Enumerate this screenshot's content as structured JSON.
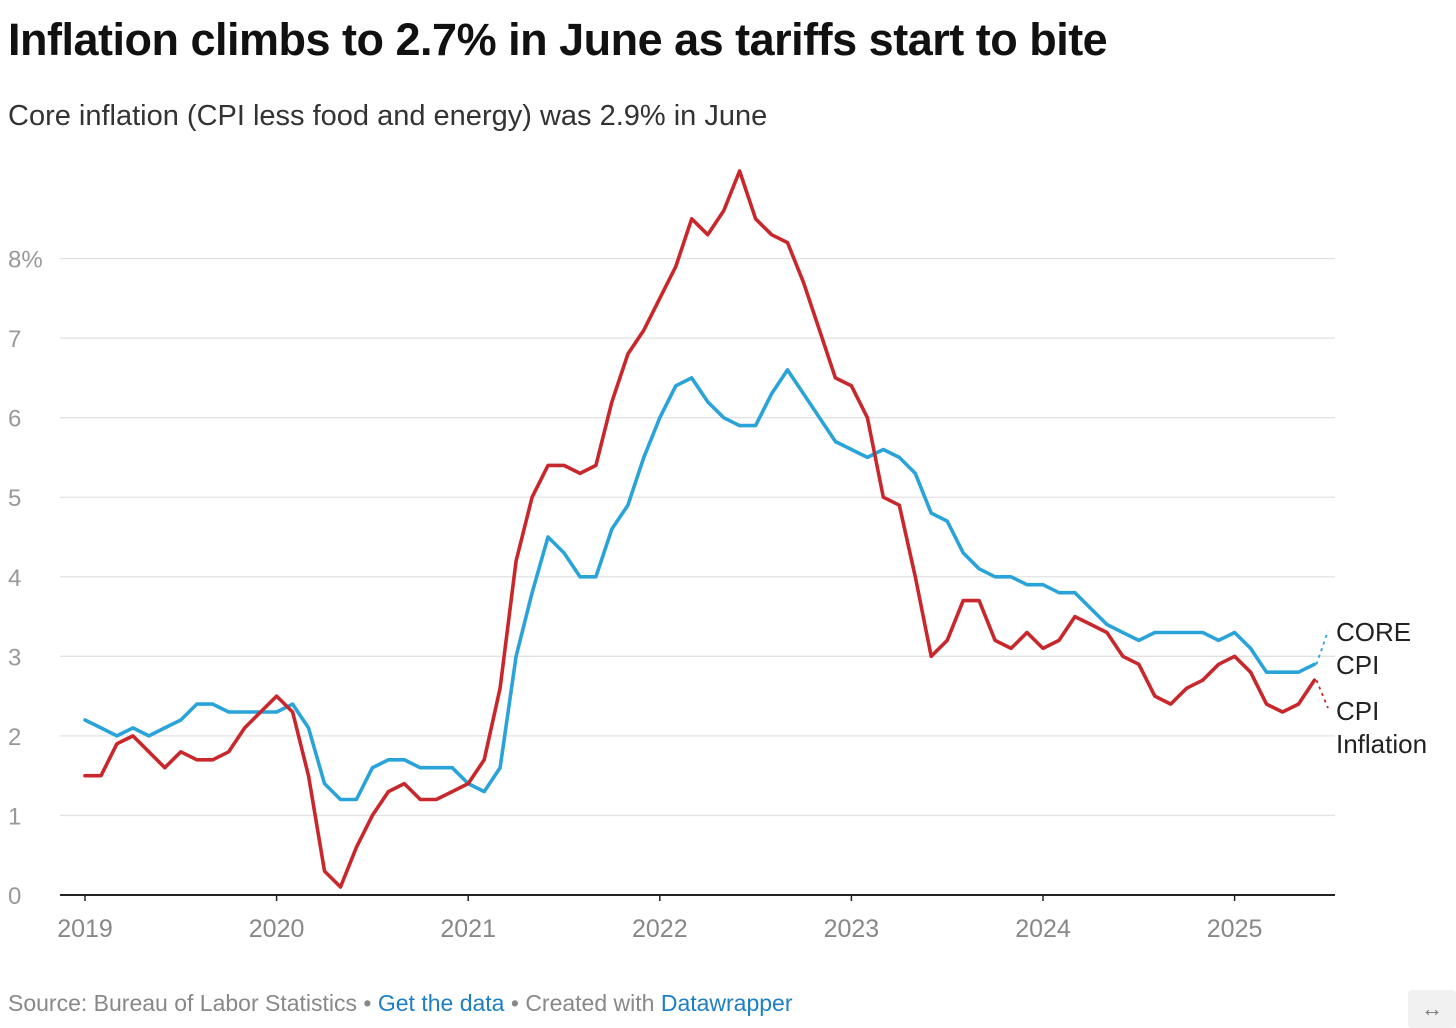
{
  "header": {
    "title": "Inflation climbs to 2.7% in June as tariffs start to bite",
    "subtitle": "Core inflation (CPI less food and energy) was 2.9% in June"
  },
  "footer": {
    "source_text": "Source: Bureau of Labor Statistics",
    "separator": " • ",
    "get_data_label": "Get the data",
    "created_with_text": "Created with ",
    "datawrapper_label": "Datawrapper"
  },
  "icons": {
    "expand": "expand-horizontal-icon"
  },
  "colors": {
    "cpi": "#c8282b",
    "core": "#2aa4d8",
    "link": "#1d7fc4"
  },
  "chart_data": {
    "type": "line",
    "title": "Inflation climbs to 2.7% in June as tariffs start to bite",
    "subtitle": "Core inflation (CPI less food and energy) was 2.9% in June",
    "x_start": "2019-01",
    "x_end": "2025-06",
    "x_ticks": [
      "2019",
      "2020",
      "2021",
      "2022",
      "2023",
      "2024",
      "2025"
    ],
    "y_ticks": [
      0,
      1,
      2,
      3,
      4,
      5,
      6,
      7,
      8
    ],
    "y_tick_labels": [
      "0",
      "1",
      "2",
      "3",
      "4",
      "5",
      "6",
      "7",
      "8%"
    ],
    "ylim": [
      0,
      9
    ],
    "grid": true,
    "series": [
      {
        "name": "CORE CPI",
        "label_lines": [
          "CORE",
          "CPI"
        ],
        "color": "#2aa4d8",
        "values": [
          2.2,
          2.1,
          2.0,
          2.1,
          2.0,
          2.1,
          2.2,
          2.4,
          2.4,
          2.3,
          2.3,
          2.3,
          2.3,
          2.4,
          2.1,
          1.4,
          1.2,
          1.2,
          1.6,
          1.7,
          1.7,
          1.6,
          1.6,
          1.6,
          1.4,
          1.3,
          1.6,
          3.0,
          3.8,
          4.5,
          4.3,
          4.0,
          4.0,
          4.6,
          4.9,
          5.5,
          6.0,
          6.4,
          6.5,
          6.2,
          6.0,
          5.9,
          5.9,
          6.3,
          6.6,
          6.3,
          6.0,
          5.7,
          5.6,
          5.5,
          5.6,
          5.5,
          5.3,
          4.8,
          4.7,
          4.3,
          4.1,
          4.0,
          4.0,
          3.9,
          3.9,
          3.8,
          3.8,
          3.6,
          3.4,
          3.3,
          3.2,
          3.3,
          3.3,
          3.3,
          3.3,
          3.2,
          3.3,
          3.1,
          2.8,
          2.8,
          2.8,
          2.9
        ]
      },
      {
        "name": "CPI Inflation",
        "label_lines": [
          "CPI",
          "Inflation"
        ],
        "color": "#c8282b",
        "values": [
          1.5,
          1.5,
          1.9,
          2.0,
          1.8,
          1.6,
          1.8,
          1.7,
          1.7,
          1.8,
          2.1,
          2.3,
          2.5,
          2.3,
          1.5,
          0.3,
          0.1,
          0.6,
          1.0,
          1.3,
          1.4,
          1.2,
          1.2,
          1.3,
          1.4,
          1.7,
          2.6,
          4.2,
          5.0,
          5.4,
          5.4,
          5.3,
          5.4,
          6.2,
          6.8,
          7.1,
          7.5,
          7.9,
          8.5,
          8.3,
          8.6,
          9.1,
          8.5,
          8.3,
          8.2,
          7.7,
          7.1,
          6.5,
          6.4,
          6.0,
          5.0,
          4.9,
          4.0,
          3.0,
          3.2,
          3.7,
          3.7,
          3.2,
          3.1,
          3.3,
          3.1,
          3.2,
          3.5,
          3.4,
          3.3,
          3.0,
          2.9,
          2.5,
          2.4,
          2.6,
          2.7,
          2.9,
          3.0,
          2.8,
          2.4,
          2.3,
          2.4,
          2.7
        ]
      }
    ]
  }
}
